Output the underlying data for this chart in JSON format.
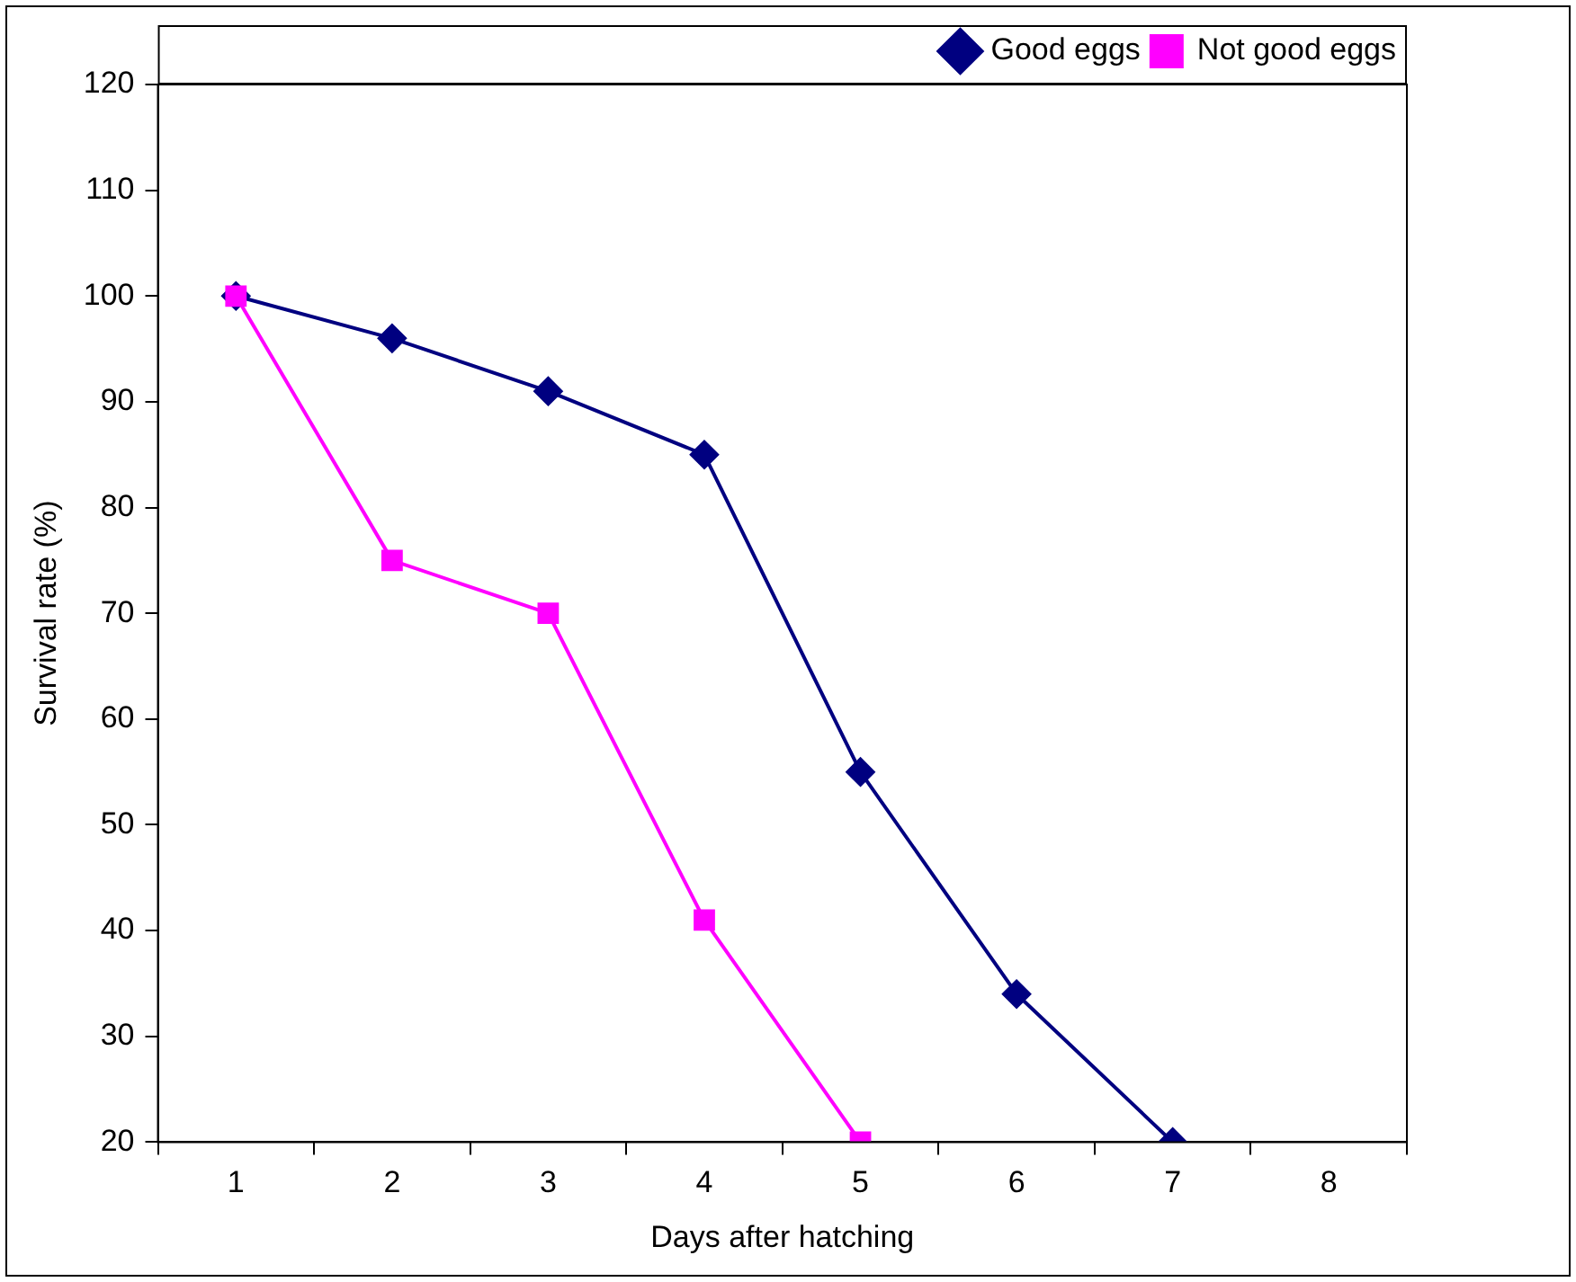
{
  "chart_data": {
    "type": "line",
    "xlabel": "Days after hatching",
    "ylabel": "Survival rate (%)",
    "categories": [
      "1",
      "2",
      "3",
      "4",
      "5",
      "6",
      "7",
      "8"
    ],
    "series": [
      {
        "name": "Good eggs",
        "color": "#000080",
        "marker": "diamond",
        "values": [
          100,
          96,
          91,
          85,
          55,
          34,
          20,
          null
        ]
      },
      {
        "name": "Not good eggs",
        "color": "#ff00ff",
        "marker": "square",
        "values": [
          100,
          75,
          70,
          41,
          20,
          null,
          null,
          null
        ]
      }
    ],
    "ylim": [
      20,
      120
    ],
    "yticks": [
      20,
      30,
      40,
      50,
      60,
      70,
      80,
      90,
      100,
      110,
      120
    ],
    "grid": false,
    "legend": "top right",
    "line_style": "solid"
  }
}
